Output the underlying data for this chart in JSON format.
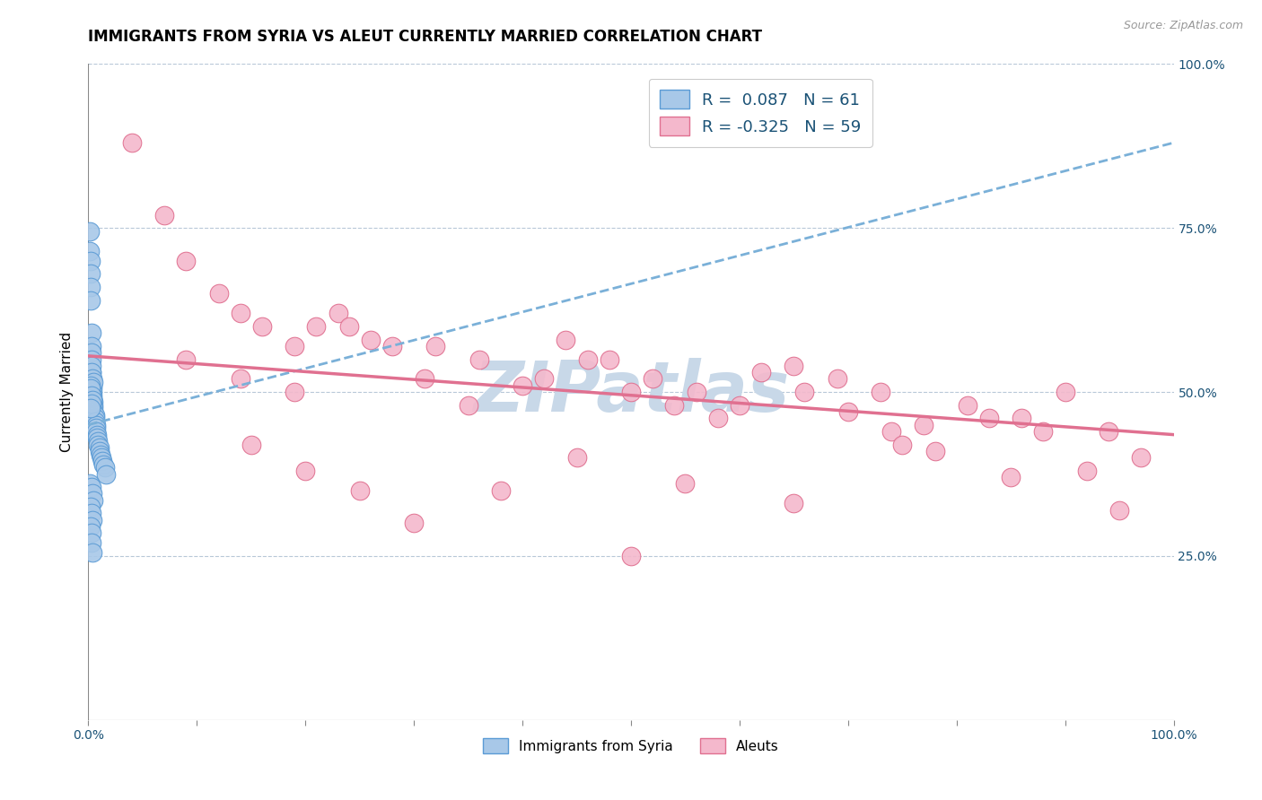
{
  "title": "IMMIGRANTS FROM SYRIA VS ALEUT CURRENTLY MARRIED CORRELATION CHART",
  "source_text": "Source: ZipAtlas.com",
  "ylabel": "Currently Married",
  "legend_label1": "R =  0.087   N = 61",
  "legend_label2": "R = -0.325   N = 59",
  "scatter_color1": "#a8c8e8",
  "scatter_color2": "#f4b8cc",
  "scatter_edgecolor1": "#5b9bd5",
  "scatter_edgecolor2": "#e07090",
  "trendline_color1": "#7ab0d8",
  "trendline_color2": "#e07090",
  "title_fontsize": 12,
  "axis_label_fontsize": 11,
  "tick_fontsize": 10,
  "legend_fontsize": 13,
  "watermark_text": "ZIPatlas",
  "watermark_color": "#c8d8e8",
  "background_color": "#ffffff",
  "grid_color": "#b8c8d8",
  "xlim": [
    0,
    1
  ],
  "ylim": [
    0,
    1
  ],
  "blue_trendline": [
    0.45,
    0.88
  ],
  "pink_trendline": [
    0.555,
    0.435
  ],
  "blue_x": [
    0.001,
    0.001,
    0.002,
    0.002,
    0.002,
    0.002,
    0.003,
    0.003,
    0.003,
    0.003,
    0.003,
    0.003,
    0.003,
    0.004,
    0.004,
    0.004,
    0.004,
    0.004,
    0.005,
    0.005,
    0.005,
    0.005,
    0.006,
    0.006,
    0.006,
    0.007,
    0.007,
    0.007,
    0.008,
    0.008,
    0.009,
    0.009,
    0.01,
    0.01,
    0.011,
    0.012,
    0.013,
    0.014,
    0.015,
    0.016,
    0.003,
    0.003,
    0.004,
    0.005,
    0.002,
    0.002,
    0.003,
    0.004,
    0.003,
    0.002,
    0.001,
    0.003,
    0.004,
    0.005,
    0.002,
    0.003,
    0.004,
    0.002,
    0.003,
    0.003,
    0.004
  ],
  "blue_y": [
    0.745,
    0.715,
    0.7,
    0.68,
    0.66,
    0.64,
    0.59,
    0.57,
    0.56,
    0.55,
    0.53,
    0.52,
    0.51,
    0.51,
    0.505,
    0.5,
    0.495,
    0.49,
    0.485,
    0.48,
    0.475,
    0.47,
    0.465,
    0.46,
    0.455,
    0.45,
    0.445,
    0.44,
    0.435,
    0.43,
    0.425,
    0.42,
    0.415,
    0.41,
    0.405,
    0.4,
    0.395,
    0.39,
    0.385,
    0.375,
    0.54,
    0.53,
    0.52,
    0.515,
    0.51,
    0.505,
    0.495,
    0.488,
    0.482,
    0.475,
    0.36,
    0.355,
    0.345,
    0.335,
    0.325,
    0.315,
    0.305,
    0.295,
    0.285,
    0.27,
    0.255
  ],
  "pink_x": [
    0.04,
    0.07,
    0.09,
    0.12,
    0.14,
    0.16,
    0.19,
    0.21,
    0.23,
    0.26,
    0.28,
    0.09,
    0.14,
    0.19,
    0.24,
    0.32,
    0.36,
    0.4,
    0.44,
    0.48,
    0.52,
    0.56,
    0.6,
    0.65,
    0.69,
    0.73,
    0.77,
    0.81,
    0.86,
    0.9,
    0.94,
    0.97,
    0.31,
    0.35,
    0.42,
    0.46,
    0.5,
    0.54,
    0.58,
    0.62,
    0.66,
    0.7,
    0.74,
    0.78,
    0.83,
    0.88,
    0.92,
    0.15,
    0.2,
    0.25,
    0.3,
    0.38,
    0.45,
    0.55,
    0.65,
    0.75,
    0.85,
    0.95,
    0.5
  ],
  "pink_y": [
    0.88,
    0.77,
    0.7,
    0.65,
    0.62,
    0.6,
    0.57,
    0.6,
    0.62,
    0.58,
    0.57,
    0.55,
    0.52,
    0.5,
    0.6,
    0.57,
    0.55,
    0.51,
    0.58,
    0.55,
    0.52,
    0.5,
    0.48,
    0.54,
    0.52,
    0.5,
    0.45,
    0.48,
    0.46,
    0.5,
    0.44,
    0.4,
    0.52,
    0.48,
    0.52,
    0.55,
    0.5,
    0.48,
    0.46,
    0.53,
    0.5,
    0.47,
    0.44,
    0.41,
    0.46,
    0.44,
    0.38,
    0.42,
    0.38,
    0.35,
    0.3,
    0.35,
    0.4,
    0.36,
    0.33,
    0.42,
    0.37,
    0.32,
    0.25
  ],
  "x_ticks_major": [
    0.0,
    0.1,
    0.2,
    0.3,
    0.4,
    0.5,
    0.6,
    0.7,
    0.8,
    0.9,
    1.0
  ],
  "y_ticks": [
    0.0,
    0.25,
    0.5,
    0.75,
    1.0
  ]
}
